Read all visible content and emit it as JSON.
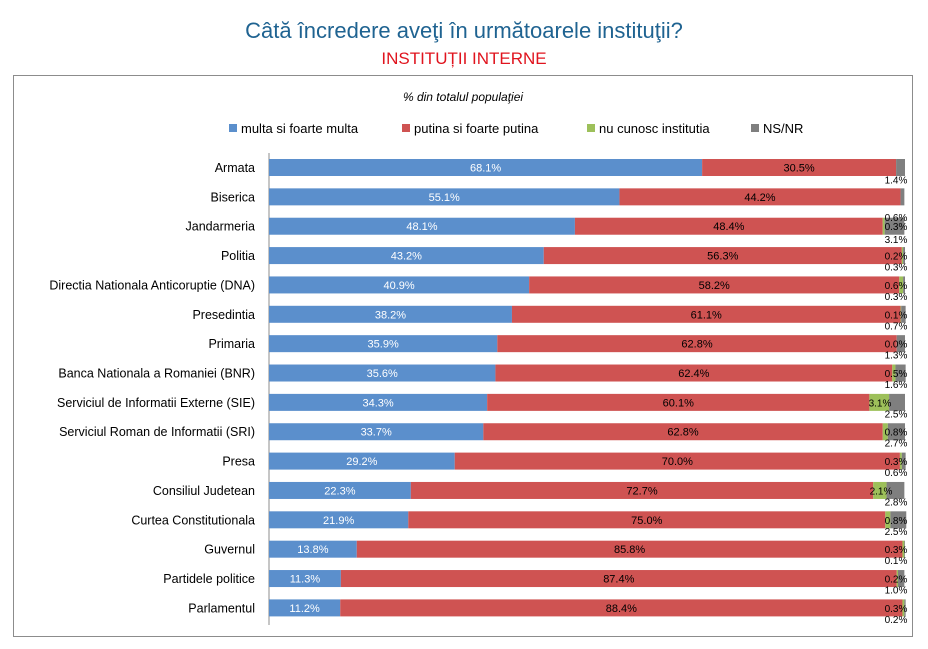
{
  "chart_data": {
    "type": "bar",
    "stacked": true,
    "orientation": "horizontal",
    "title": "Câtă încredere aveţi în următoarele instituţii?",
    "subtitle": "INSTITUȚII INTERNE",
    "axis_title": "% din totalul populaţiei",
    "xlim": [
      0,
      100
    ],
    "legend_position": "top",
    "categories": [
      "Armata",
      "Biserica",
      "Jandarmeria",
      "Politia",
      "Directia Nationala Anticoruptie (DNA)",
      "Presedintia",
      "Primaria",
      "Banca Nationala a Romaniei (BNR)",
      "Serviciul de Informatii Externe (SIE)",
      "Serviciul Roman de Informatii (SRI)",
      "Presa",
      "Consiliul Judetean",
      "Curtea Constitutionala",
      "Guvernul",
      "Partidele politice",
      "Parlamentul"
    ],
    "series": [
      {
        "name": "multa si foarte multa",
        "color": "#5b8fcc",
        "values": [
          68.1,
          55.1,
          48.1,
          43.2,
          40.9,
          38.2,
          35.9,
          35.6,
          34.3,
          33.7,
          29.2,
          22.3,
          21.9,
          13.8,
          11.3,
          11.2
        ]
      },
      {
        "name": "putina si foarte putina",
        "color": "#cf5352",
        "values": [
          30.5,
          44.2,
          48.4,
          56.3,
          58.2,
          61.1,
          62.8,
          62.4,
          60.1,
          62.8,
          70.0,
          72.7,
          75.0,
          85.8,
          87.4,
          88.4
        ]
      },
      {
        "name": "nu cunosc institutia",
        "color": "#9dc05a",
        "values": [
          0.0,
          0.0,
          0.3,
          0.2,
          0.6,
          0.1,
          0.0,
          0.5,
          3.1,
          0.8,
          0.3,
          2.1,
          0.8,
          0.3,
          0.2,
          0.3
        ]
      },
      {
        "name": "NS/NR",
        "color": "#7f7f7f",
        "values": [
          1.4,
          0.6,
          3.1,
          0.3,
          0.3,
          0.7,
          1.3,
          1.6,
          2.5,
          2.7,
          0.6,
          2.8,
          2.5,
          0.1,
          1.0,
          0.2
        ]
      }
    ],
    "small_labels": [
      {
        "row": 0,
        "texts": [
          "1.4%"
        ]
      },
      {
        "row": 2,
        "texts": [
          "0.6%",
          "0.3%",
          "3.1%"
        ]
      },
      {
        "row": 3,
        "texts": [
          "0.2%",
          "0.3%"
        ]
      },
      {
        "row": 4,
        "texts": [
          "0.6%",
          "0.3%"
        ]
      },
      {
        "row": 5,
        "texts": [
          "0.1%",
          "0.7%"
        ]
      },
      {
        "row": 6,
        "texts": [
          "0.0%",
          "1.3%"
        ]
      },
      {
        "row": 7,
        "texts": [
          "0.5%",
          "1.6%"
        ]
      },
      {
        "row": 8,
        "texts": [
          "3.1%",
          "2.5%"
        ]
      },
      {
        "row": 9,
        "texts": [
          "0.8%",
          "2.7%"
        ]
      },
      {
        "row": 10,
        "texts": [
          "0.3%",
          "0.6%"
        ]
      },
      {
        "row": 11,
        "texts": [
          "2.1%",
          "2.8%"
        ]
      },
      {
        "row": 12,
        "texts": [
          "0.8%",
          "2.5%"
        ]
      },
      {
        "row": 13,
        "texts": [
          "0.3%",
          "0.1%"
        ]
      },
      {
        "row": 14,
        "texts": [
          "0.2%",
          "1.0%"
        ]
      },
      {
        "row": 15,
        "texts": [
          "0.3%",
          "0.2%"
        ]
      }
    ]
  }
}
